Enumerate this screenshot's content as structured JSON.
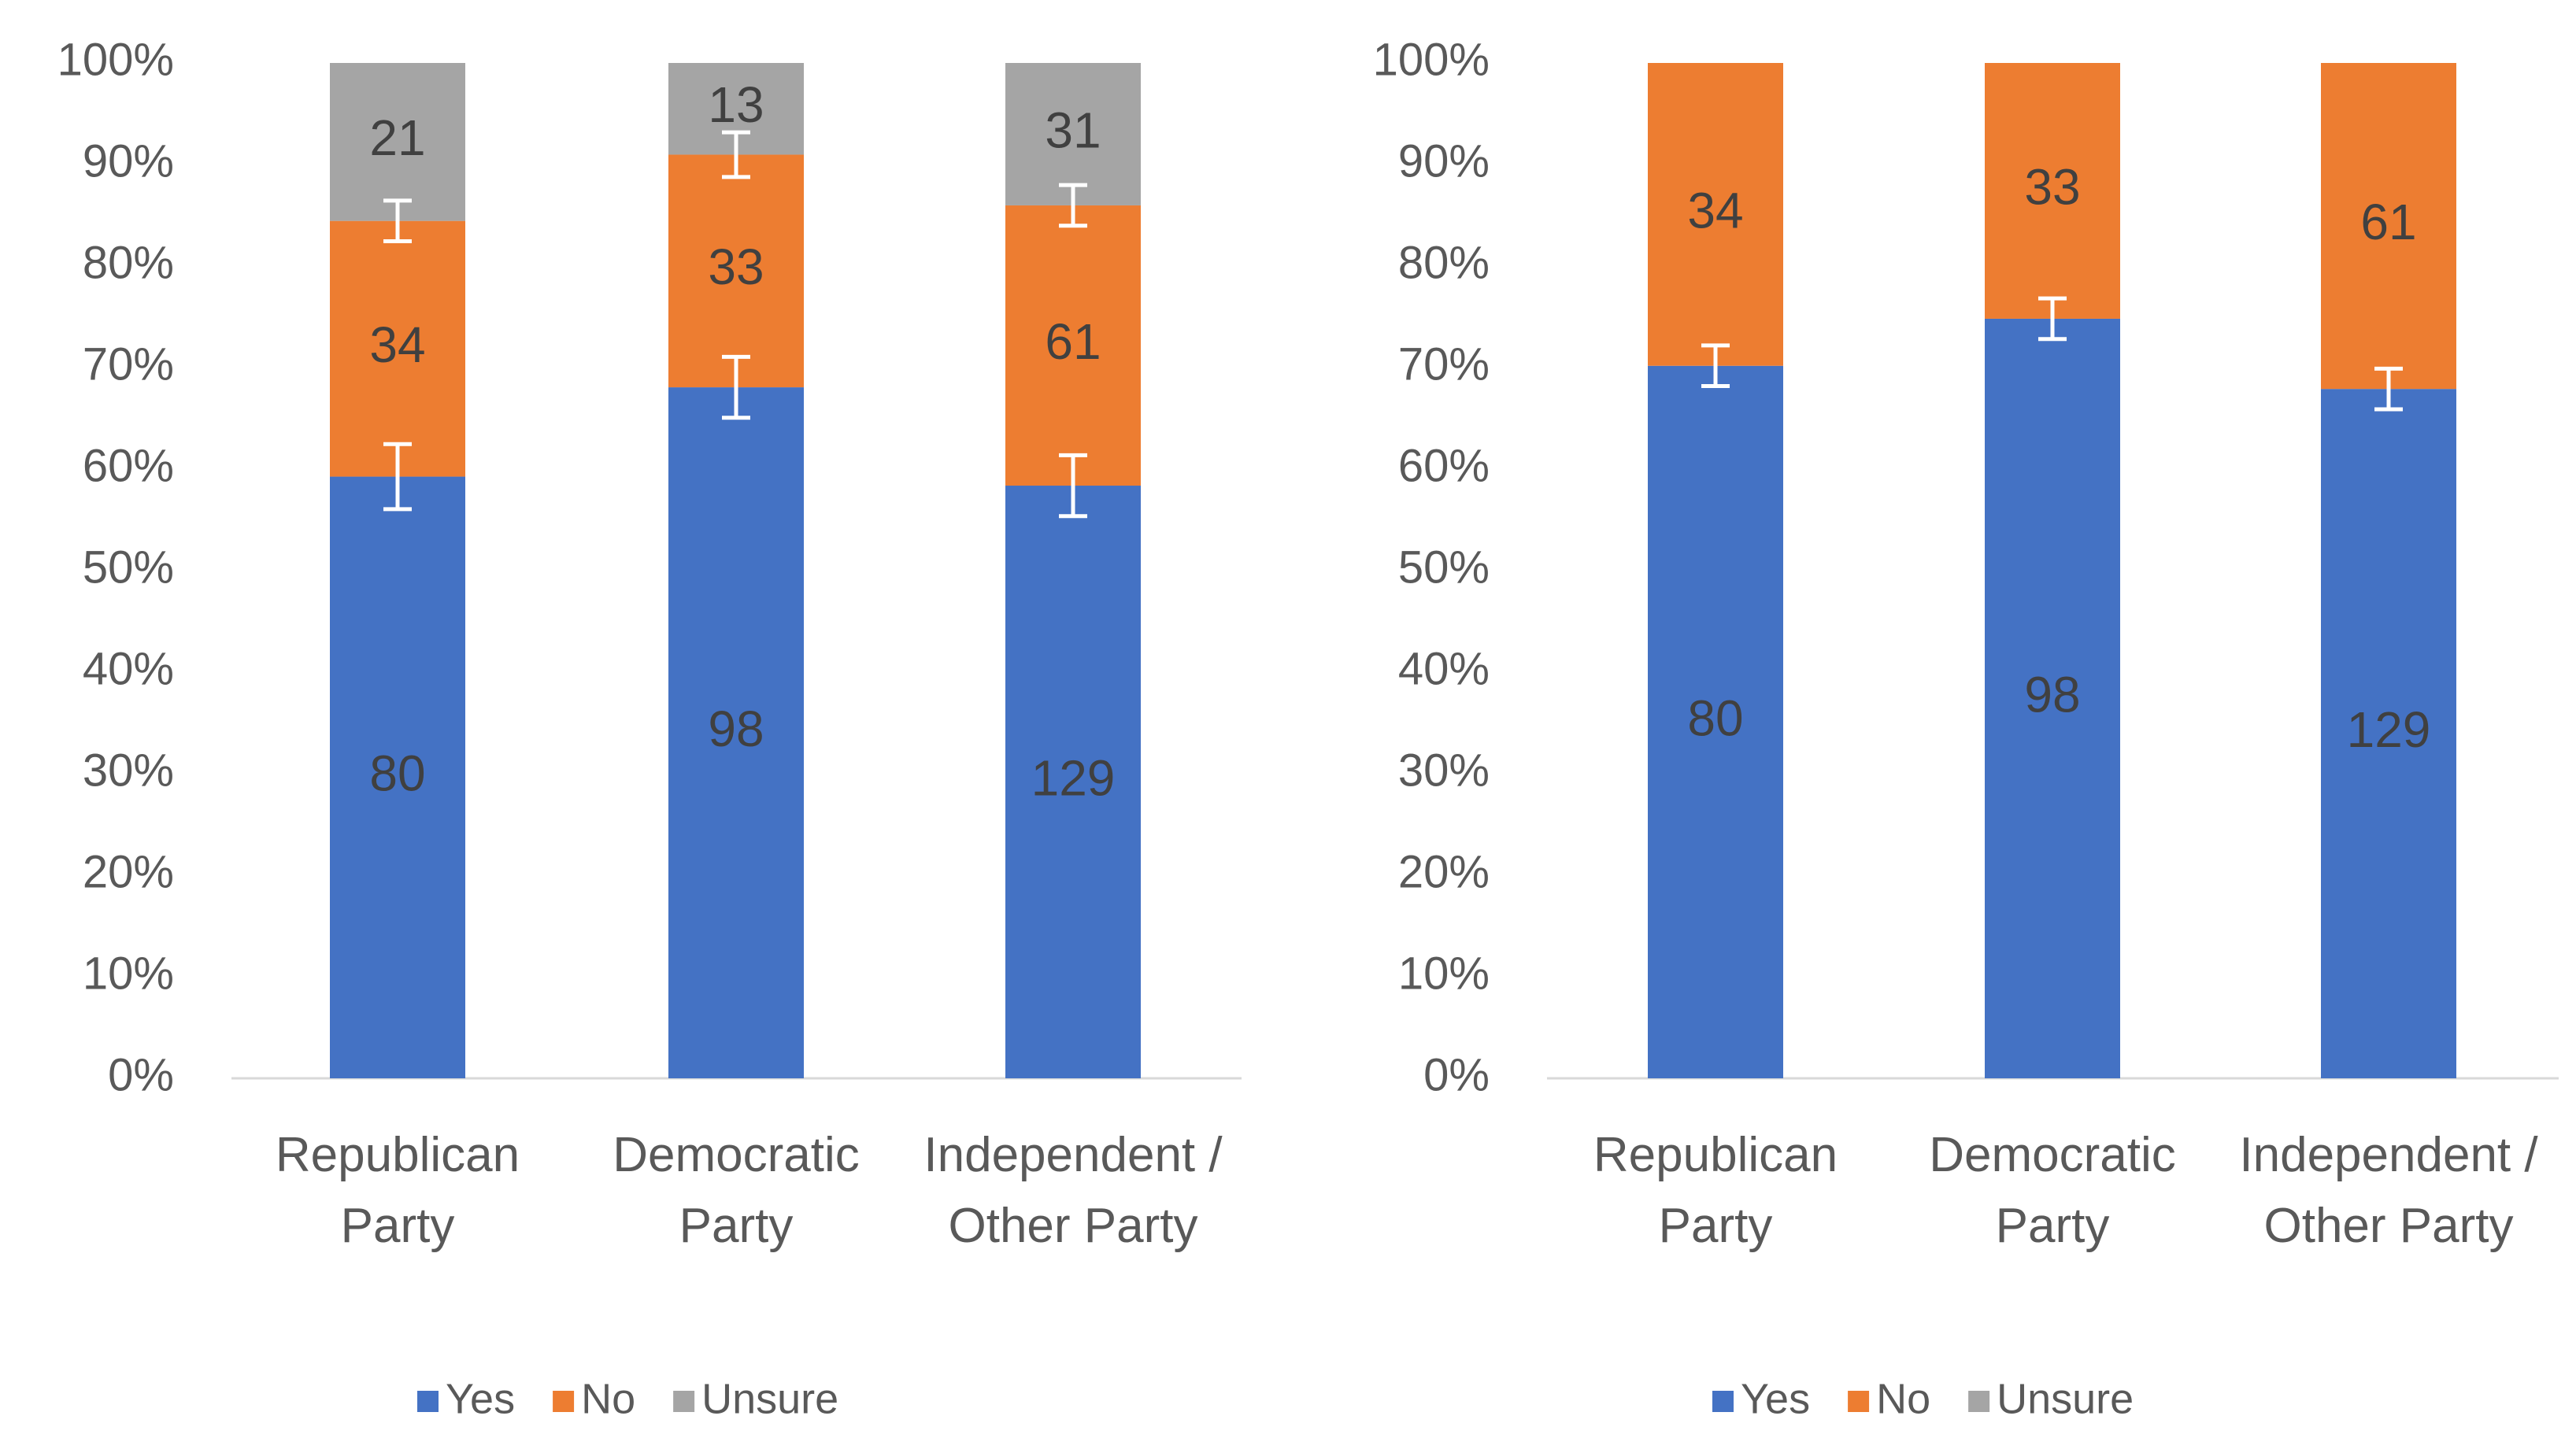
{
  "chart_data": [
    {
      "type": "bar",
      "stacking": "percent",
      "categories": [
        "Republican Party",
        "Democratic Party",
        "Independent / Other Party"
      ],
      "series": [
        {
          "name": "Yes",
          "color": "#4472c4",
          "values": [
            80,
            98,
            129
          ],
          "errors": [
            3.2,
            3,
            3
          ]
        },
        {
          "name": "No",
          "color": "#ed7d31",
          "values": [
            34,
            33,
            61
          ],
          "errors": [
            2,
            2.2,
            2
          ]
        },
        {
          "name": "Unsure",
          "color": "#a5a5a5",
          "values": [
            21,
            13,
            31
          ]
        }
      ],
      "ylim": [
        0,
        100
      ],
      "yticks": [
        {
          "value": 0,
          "label": "0%"
        },
        {
          "value": 10,
          "label": "10%"
        },
        {
          "value": 20,
          "label": "20%"
        },
        {
          "value": 30,
          "label": "30%"
        },
        {
          "value": 40,
          "label": "40%"
        },
        {
          "value": 50,
          "label": "50%"
        },
        {
          "value": 60,
          "label": "60%"
        },
        {
          "value": 70,
          "label": "70%"
        },
        {
          "value": 80,
          "label": "80%"
        },
        {
          "value": 90,
          "label": "90%"
        },
        {
          "value": 100,
          "label": "100%"
        }
      ],
      "legend": "bottom"
    },
    {
      "type": "bar",
      "stacking": "percent",
      "categories": [
        "Republican Party",
        "Democratic Party",
        "Independent / Other Party"
      ],
      "series": [
        {
          "name": "Yes",
          "color": "#4472c4",
          "values": [
            80,
            98,
            129
          ],
          "errors": [
            2,
            2,
            2
          ]
        },
        {
          "name": "No",
          "color": "#ed7d31",
          "values": [
            34,
            33,
            61
          ]
        },
        {
          "name": "Unsure",
          "color": "#a5a5a5",
          "values": [
            0,
            0,
            0
          ]
        }
      ],
      "ylim": [
        0,
        100
      ],
      "yticks": [
        {
          "value": 0,
          "label": "0%"
        },
        {
          "value": 10,
          "label": "10%"
        },
        {
          "value": 20,
          "label": "20%"
        },
        {
          "value": 30,
          "label": "30%"
        },
        {
          "value": 40,
          "label": "40%"
        },
        {
          "value": 50,
          "label": "50%"
        },
        {
          "value": 60,
          "label": "60%"
        },
        {
          "value": 70,
          "label": "70%"
        },
        {
          "value": 80,
          "label": "80%"
        },
        {
          "value": 90,
          "label": "90%"
        },
        {
          "value": 100,
          "label": "100%"
        }
      ],
      "legend": "bottom"
    }
  ]
}
